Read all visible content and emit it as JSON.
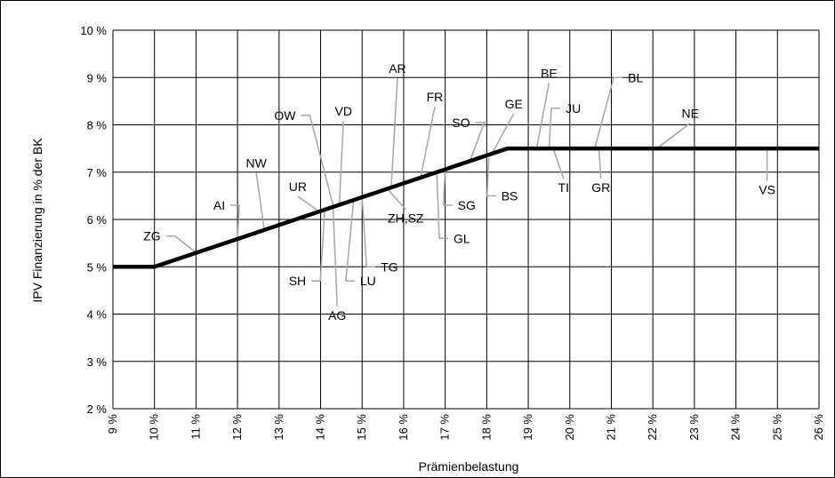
{
  "chart_data": {
    "type": "line",
    "xlabel": "Prämienbelastung",
    "ylabel": "IPV Finanzierung in % der BK",
    "xlim": [
      9,
      26
    ],
    "ylim": [
      2,
      10
    ],
    "x_ticks": [
      9,
      10,
      11,
      12,
      13,
      14,
      15,
      16,
      17,
      18,
      19,
      20,
      21,
      22,
      23,
      24,
      25,
      26
    ],
    "y_ticks": [
      2,
      3,
      4,
      5,
      6,
      7,
      8,
      9,
      10
    ],
    "x_tick_labels": [
      "9 %",
      "10 %",
      "11 %",
      "12 %",
      "13 %",
      "14 %",
      "15 %",
      "16 %",
      "17 %",
      "18 %",
      "19 %",
      "20 %",
      "21 %",
      "22 %",
      "23 %",
      "24 %",
      "25 %",
      "26 %"
    ],
    "y_tick_labels": [
      "2 %",
      "3 %",
      "4 %",
      "5 %",
      "6 %",
      "7 %",
      "8 %",
      "9 %",
      "10 %"
    ],
    "grid": true,
    "series": [
      {
        "x": [
          9,
          10,
          18.5,
          26
        ],
        "y": [
          5,
          5,
          7.5,
          7.5
        ]
      }
    ],
    "annotations": [
      {
        "label": "ZG",
        "x": 11.0,
        "y": 5.3,
        "label_x": 10.15,
        "label_y": 5.65,
        "anchor": "end"
      },
      {
        "label": "AI",
        "x": 12.0,
        "y": 5.6,
        "label_x": 11.7,
        "label_y": 6.3,
        "anchor": "end"
      },
      {
        "label": "NW",
        "x": 12.65,
        "y": 5.75,
        "label_x": 12.45,
        "label_y": 7.1,
        "anchor": "middle"
      },
      {
        "label": "UR",
        "x": 14.0,
        "y": 6.15,
        "label_x": 13.45,
        "label_y": 6.6,
        "anchor": "middle"
      },
      {
        "label": "OW",
        "x": 14.3,
        "y": 6.3,
        "label_x": 13.4,
        "label_y": 8.2,
        "anchor": "end"
      },
      {
        "label": "VD",
        "x": 14.45,
        "y": 6.3,
        "label_x": 14.55,
        "label_y": 8.2,
        "anchor": "middle"
      },
      {
        "label": "SH",
        "x": 14.1,
        "y": 6.2,
        "label_x": 13.65,
        "label_y": 4.7,
        "anchor": "end"
      },
      {
        "label": "AG",
        "x": 14.3,
        "y": 6.25,
        "label_x": 14.4,
        "label_y": 3.9,
        "anchor": "middle"
      },
      {
        "label": "LU",
        "x": 14.8,
        "y": 6.45,
        "label_x": 14.95,
        "label_y": 4.7,
        "anchor": "start"
      },
      {
        "label": "TG",
        "x": 15.0,
        "y": 6.45,
        "label_x": 15.45,
        "label_y": 5.0,
        "anchor": "start"
      },
      {
        "label": "ZH,SZ",
        "x": 15.6,
        "y": 6.65,
        "label_x": 16.05,
        "label_y": 5.95,
        "anchor": "middle"
      },
      {
        "label": "AR",
        "x": 15.7,
        "y": 6.65,
        "label_x": 15.85,
        "label_y": 9.1,
        "anchor": "middle"
      },
      {
        "label": "FR",
        "x": 16.4,
        "y": 6.85,
        "label_x": 16.75,
        "label_y": 8.5,
        "anchor": "middle"
      },
      {
        "label": "SG",
        "x": 17.0,
        "y": 7.05,
        "label_x": 17.3,
        "label_y": 6.3,
        "anchor": "start"
      },
      {
        "label": "GL",
        "x": 16.8,
        "y": 6.95,
        "label_x": 17.2,
        "label_y": 5.6,
        "anchor": "start"
      },
      {
        "label": "SO",
        "x": 17.6,
        "y": 7.25,
        "label_x": 17.6,
        "label_y": 8.05,
        "anchor": "end"
      },
      {
        "label": "GE",
        "x": 18.1,
        "y": 7.35,
        "label_x": 18.65,
        "label_y": 8.35,
        "anchor": "middle"
      },
      {
        "label": "BS",
        "x": 18.05,
        "y": 7.3,
        "label_x": 18.35,
        "label_y": 6.5,
        "anchor": "start"
      },
      {
        "label": "BE",
        "x": 19.2,
        "y": 7.5,
        "label_x": 19.5,
        "label_y": 9.0,
        "anchor": "middle"
      },
      {
        "label": "JU",
        "x": 19.5,
        "y": 7.5,
        "label_x": 19.9,
        "label_y": 8.35,
        "anchor": "start"
      },
      {
        "label": "TI",
        "x": 19.6,
        "y": 7.5,
        "label_x": 19.85,
        "label_y": 6.6,
        "anchor": "middle"
      },
      {
        "label": "GR",
        "x": 20.7,
        "y": 7.5,
        "label_x": 20.75,
        "label_y": 6.6,
        "anchor": "middle"
      },
      {
        "label": "BL",
        "x": 20.6,
        "y": 7.5,
        "label_x": 21.4,
        "label_y": 9.0,
        "anchor": "start"
      },
      {
        "label": "NE",
        "x": 22.1,
        "y": 7.5,
        "label_x": 22.9,
        "label_y": 8.15,
        "anchor": "middle"
      },
      {
        "label": "VS",
        "x": 24.75,
        "y": 7.5,
        "label_x": 24.75,
        "label_y": 6.55,
        "anchor": "middle"
      }
    ]
  }
}
